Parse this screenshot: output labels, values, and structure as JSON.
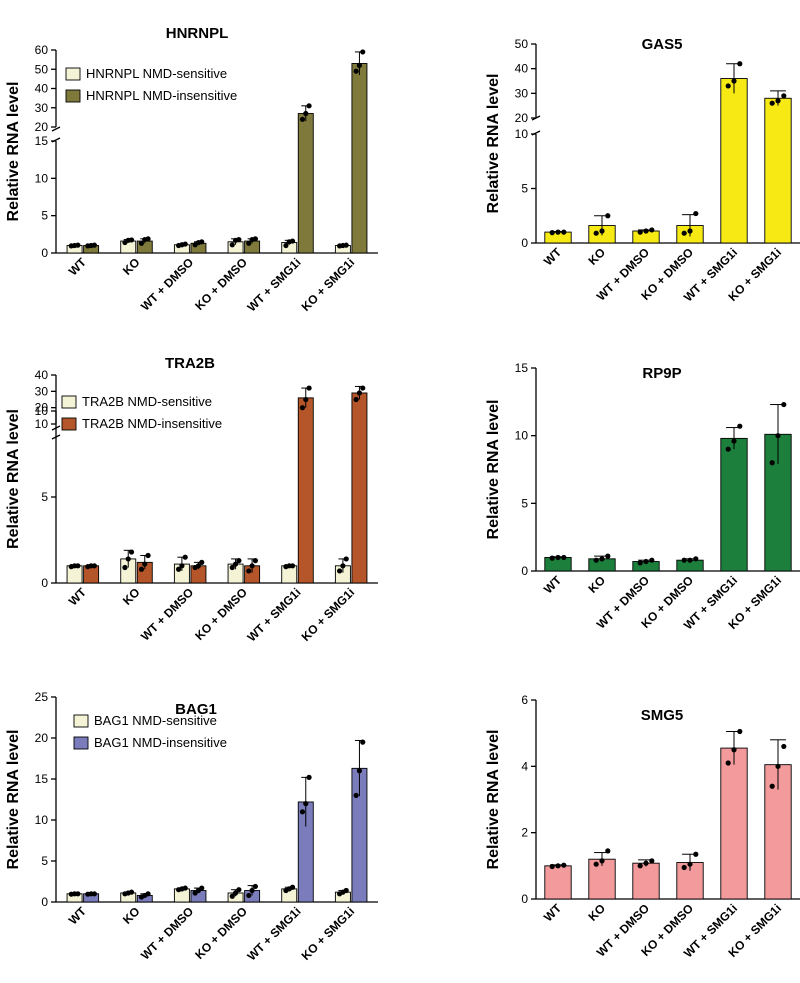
{
  "chart_data": [
    {
      "id": "hnrnpl",
      "type": "bar",
      "title": "HNRNPL",
      "ylabel": "Relative RNA level",
      "categories": [
        "WT",
        "KO",
        "WT + DMSO",
        "KO + DMSO",
        "WT + SMG1i",
        "KO + SMG1i"
      ],
      "axis_break": true,
      "lower_range": [
        0,
        15
      ],
      "lower_ticks": [
        "0",
        "5",
        "10",
        "15"
      ],
      "upper_range": [
        20,
        60
      ],
      "upper_ticks": [
        "20",
        "30",
        "40",
        "50",
        "60"
      ],
      "legend_position": "top-left",
      "series": [
        {
          "name": "HNRNPL NMD-sensitive",
          "color": "#f4f3d6",
          "values": [
            1.0,
            1.6,
            1.1,
            1.5,
            1.4,
            1.0
          ],
          "error": [
            0.05,
            0.2,
            0.1,
            0.4,
            0.3,
            0.05
          ],
          "points": [
            [
              0.95,
              1.0,
              1.05
            ],
            [
              1.4,
              1.7,
              1.75
            ],
            [
              1.0,
              1.1,
              1.2
            ],
            [
              1.1,
              1.7,
              1.8
            ],
            [
              1.0,
              1.5,
              1.6
            ],
            [
              0.95,
              1.0,
              1.05
            ]
          ]
        },
        {
          "name": "HNRNPL NMD-insensitive",
          "color": "#7f7a3c",
          "values": [
            1.0,
            1.6,
            1.3,
            1.6,
            27,
            53
          ],
          "error": [
            0.05,
            0.3,
            0.2,
            0.3,
            4,
            6
          ],
          "points": [
            [
              0.95,
              1.0,
              1.05
            ],
            [
              1.3,
              1.8,
              1.9
            ],
            [
              1.1,
              1.4,
              1.5
            ],
            [
              1.3,
              1.8,
              1.9
            ],
            [
              24,
              27,
              31
            ],
            [
              49,
              52,
              59
            ]
          ]
        }
      ]
    },
    {
      "id": "gas5",
      "type": "bar",
      "title": "GAS5",
      "ylabel": "Relative RNA level",
      "categories": [
        "WT",
        "KO",
        "WT + DMSO",
        "KO + DMSO",
        "WT + SMG1i",
        "KO + SMG1i"
      ],
      "axis_break": true,
      "lower_range": [
        0,
        10
      ],
      "lower_ticks": [
        "0",
        "5",
        "10"
      ],
      "upper_range": [
        20,
        50
      ],
      "upper_ticks": [
        "20",
        "30",
        "40",
        "50"
      ],
      "series": [
        {
          "name": "GAS5",
          "color": "#f7ea14",
          "values": [
            1.0,
            1.6,
            1.1,
            1.6,
            36,
            28
          ],
          "error": [
            0.05,
            0.9,
            0.1,
            1.0,
            6,
            3
          ],
          "points": [
            [
              0.95,
              1.0,
              1.0
            ],
            [
              0.9,
              1.1,
              2.5
            ],
            [
              1.0,
              1.1,
              1.2
            ],
            [
              0.9,
              1.1,
              2.7
            ],
            [
              33,
              35,
              42
            ],
            [
              26,
              27,
              29
            ]
          ]
        }
      ]
    },
    {
      "id": "tra2b",
      "type": "bar",
      "title": "TRA2B",
      "ylabel": "Relative RNA level",
      "categories": [
        "WT",
        "KO",
        "WT + DMSO",
        "KO + DMSO",
        "WT + SMG1i",
        "KO + SMG1i"
      ],
      "axis_break": true,
      "lower_range": [
        0,
        10
      ],
      "lower_ticks": [
        "0",
        "5",
        "10"
      ],
      "upper_range": [
        10,
        40
      ],
      "upper_ticks": [
        "10",
        "20",
        "30",
        "40"
      ],
      "legend_position": "top-left",
      "series": [
        {
          "name": "TRA2B NMD-sensitive",
          "color": "#f4f3d6",
          "values": [
            1.0,
            1.4,
            1.1,
            1.1,
            1.0,
            1.0
          ],
          "error": [
            0.05,
            0.5,
            0.4,
            0.3,
            0.05,
            0.4
          ],
          "points": [
            [
              0.95,
              1.0,
              1.0
            ],
            [
              0.9,
              1.4,
              1.8
            ],
            [
              0.8,
              1.0,
              1.5
            ],
            [
              0.9,
              1.1,
              1.3
            ],
            [
              0.95,
              1.0,
              1.0
            ],
            [
              0.7,
              1.0,
              1.4
            ]
          ]
        },
        {
          "name": "TRA2B NMD-insensitive",
          "color": "#b5562a",
          "values": [
            1.0,
            1.2,
            1.0,
            1.0,
            26,
            29
          ],
          "error": [
            0.05,
            0.4,
            0.2,
            0.4,
            6,
            4
          ],
          "points": [
            [
              0.95,
              1.0,
              1.0
            ],
            [
              0.8,
              1.1,
              1.6
            ],
            [
              0.9,
              1.0,
              1.2
            ],
            [
              0.7,
              1.0,
              1.3
            ],
            [
              20,
              25,
              32
            ],
            [
              25,
              29,
              32
            ]
          ]
        }
      ]
    },
    {
      "id": "rp9p",
      "type": "bar",
      "title": "RP9P",
      "ylabel": "Relative RNA level",
      "categories": [
        "WT",
        "KO",
        "WT + DMSO",
        "KO + DMSO",
        "WT + SMG1i",
        "KO + SMG1i"
      ],
      "ylim": [
        0,
        15
      ],
      "yticks": [
        "0",
        "5",
        "10",
        "15"
      ],
      "series": [
        {
          "name": "RP9P",
          "color": "#1c7f3c",
          "values": [
            1.0,
            0.9,
            0.7,
            0.8,
            9.8,
            10.1
          ],
          "error": [
            0.05,
            0.2,
            0.1,
            0.1,
            0.8,
            2.2
          ],
          "points": [
            [
              0.95,
              1.0,
              1.0
            ],
            [
              0.8,
              0.9,
              1.1
            ],
            [
              0.6,
              0.7,
              0.8
            ],
            [
              0.8,
              0.8,
              0.9
            ],
            [
              9.0,
              9.6,
              10.7
            ],
            [
              8.0,
              10.0,
              12.3
            ]
          ]
        }
      ]
    },
    {
      "id": "bag1",
      "type": "bar",
      "title": "BAG1",
      "ylabel": "Relative RNA level",
      "categories": [
        "WT",
        "KO",
        "WT + DMSO",
        "KO + DMSO",
        "WT + SMG1i",
        "KO + SMG1i"
      ],
      "ylim": [
        0,
        25
      ],
      "yticks": [
        "0",
        "5",
        "10",
        "15",
        "20",
        "25"
      ],
      "legend_position": "top-left",
      "series": [
        {
          "name": "BAG1 NMD-sensitive",
          "color": "#f4f3d6",
          "values": [
            1.0,
            1.1,
            1.6,
            1.1,
            1.6,
            1.2
          ],
          "error": [
            0.05,
            0.1,
            0.1,
            0.4,
            0.2,
            0.2
          ],
          "points": [
            [
              0.95,
              1.0,
              1.0
            ],
            [
              1.0,
              1.1,
              1.2
            ],
            [
              1.5,
              1.6,
              1.7
            ],
            [
              0.7,
              1.1,
              1.5
            ],
            [
              1.4,
              1.6,
              1.8
            ],
            [
              1.0,
              1.2,
              1.4
            ]
          ]
        },
        {
          "name": "BAG1 NMD-insensitive",
          "color": "#7a7cbc",
          "values": [
            1.0,
            0.8,
            1.4,
            1.4,
            12.2,
            16.3
          ],
          "error": [
            0.05,
            0.2,
            0.3,
            0.6,
            3.0,
            3.4
          ],
          "points": [
            [
              0.95,
              1.0,
              1.0
            ],
            [
              0.6,
              0.8,
              1.0
            ],
            [
              1.1,
              1.4,
              1.7
            ],
            [
              0.8,
              1.4,
              1.9
            ],
            [
              11.0,
              12.0,
              15.2
            ],
            [
              13.0,
              16.0,
              19.5
            ]
          ]
        }
      ]
    },
    {
      "id": "smg5",
      "type": "bar",
      "title": "SMG5",
      "ylabel": "Relative RNA level",
      "categories": [
        "WT",
        "KO",
        "WT + DMSO",
        "KO + DMSO",
        "WT + SMG1i",
        "KO + SMG1i"
      ],
      "ylim": [
        0,
        6
      ],
      "yticks": [
        "0",
        "2",
        "4",
        "6"
      ],
      "series": [
        {
          "name": "SMG5",
          "color": "#f39a9c",
          "values": [
            1.0,
            1.2,
            1.08,
            1.1,
            4.55,
            4.05
          ],
          "error": [
            0.03,
            0.2,
            0.1,
            0.25,
            0.5,
            0.75
          ],
          "points": [
            [
              0.98,
              1.0,
              1.02
            ],
            [
              1.05,
              1.15,
              1.45
            ],
            [
              1.0,
              1.08,
              1.15
            ],
            [
              0.95,
              1.05,
              1.35
            ],
            [
              4.1,
              4.5,
              5.05
            ],
            [
              3.4,
              4.0,
              4.6
            ]
          ]
        }
      ]
    }
  ]
}
